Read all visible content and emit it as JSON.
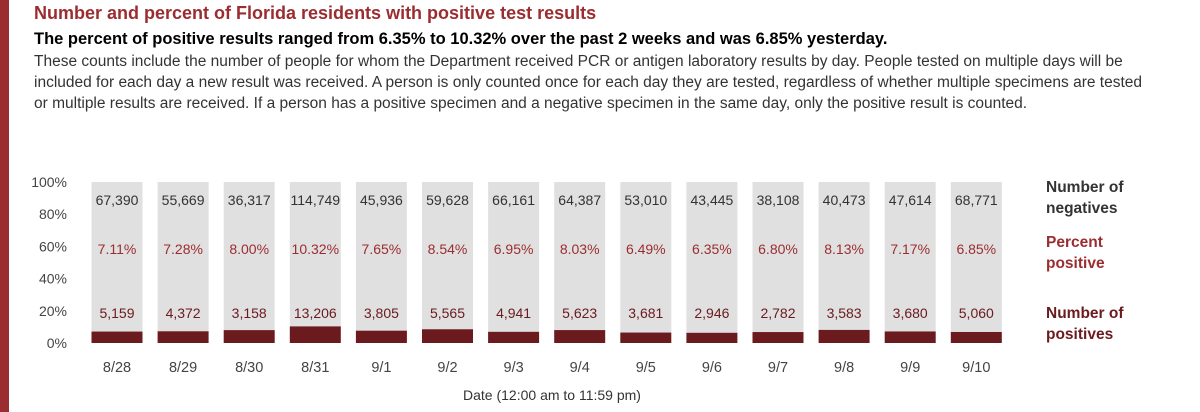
{
  "header": {
    "title": "Number and percent of Florida residents with positive test results",
    "subtitle": "The percent of positive results ranged from 6.35% to 10.32% over the past 2 weeks and was 6.85% yesterday.",
    "description": "These counts include the number of people for whom the Department received PCR or antigen laboratory results by day. People tested on multiple days will be included for each day a new result was received. A person is only counted once for each day they are tested, regardless of whether multiple specimens are tested or multiple results are received. If a person has a positive specimen and a negative specimen in the same day, only the positive result is counted."
  },
  "colors": {
    "accent": "#9b2d30",
    "negatives_bar": "#e0e0e0",
    "positives_bar": "#6b1a1e"
  },
  "chart_data": {
    "type": "bar",
    "stacked": true,
    "categories": [
      "8/28",
      "8/29",
      "8/30",
      "8/31",
      "9/1",
      "9/2",
      "9/3",
      "9/4",
      "9/5",
      "9/6",
      "9/7",
      "9/8",
      "9/9",
      "9/10"
    ],
    "xlabel": "Date (12:00 am to 11:59 pm)",
    "ylabel": "",
    "yticks": [
      "100%",
      "80%",
      "60%",
      "40%",
      "20%",
      "0%"
    ],
    "ylim": [
      0,
      100
    ],
    "grid": false,
    "series": [
      {
        "name": "Number of negatives",
        "labels": [
          "67,390",
          "55,669",
          "36,317",
          "114,749",
          "45,936",
          "59,628",
          "66,161",
          "64,387",
          "53,010",
          "43,445",
          "38,108",
          "40,473",
          "47,614",
          "68,771"
        ]
      },
      {
        "name": "Percent positive",
        "values": [
          7.11,
          7.28,
          8.0,
          10.32,
          7.65,
          8.54,
          6.95,
          8.03,
          6.49,
          6.35,
          6.8,
          8.13,
          7.17,
          6.85
        ],
        "labels": [
          "7.11%",
          "7.28%",
          "8.00%",
          "10.32%",
          "7.65%",
          "8.54%",
          "6.95%",
          "8.03%",
          "6.49%",
          "6.35%",
          "6.80%",
          "8.13%",
          "7.17%",
          "6.85%"
        ]
      },
      {
        "name": "Number of positives",
        "labels": [
          "5,159",
          "4,372",
          "3,158",
          "13,206",
          "3,805",
          "5,565",
          "4,941",
          "5,623",
          "3,681",
          "2,946",
          "2,782",
          "3,583",
          "3,680",
          "5,060"
        ]
      }
    ],
    "legend": {
      "placement": "right",
      "negatives": [
        "Number of",
        "negatives"
      ],
      "percent": [
        "Percent",
        "positive"
      ],
      "positives": [
        "Number of",
        "positives"
      ]
    }
  }
}
